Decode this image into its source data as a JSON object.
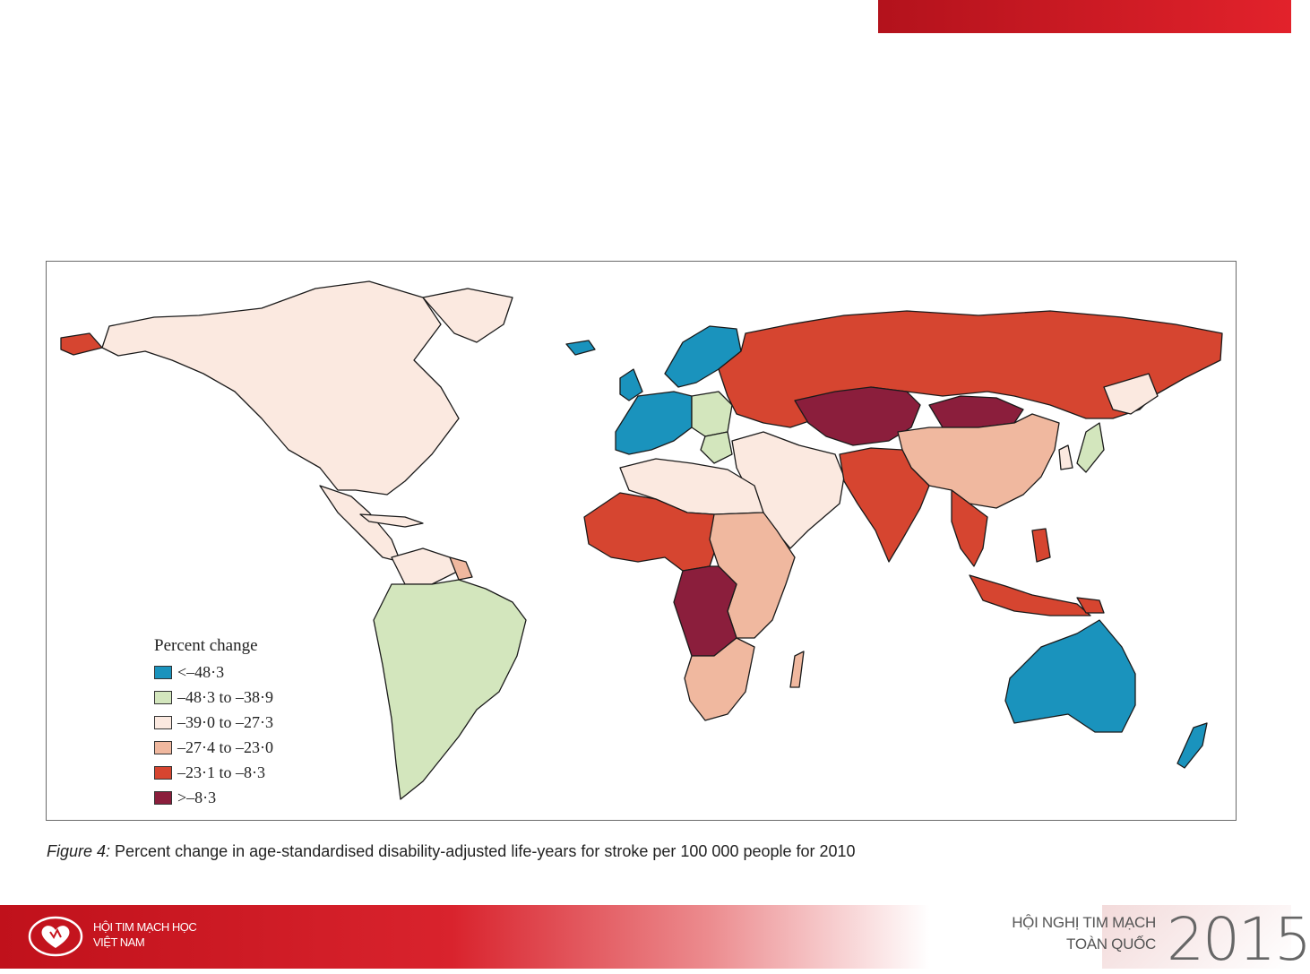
{
  "legend": {
    "title": "Percent change",
    "items": [
      {
        "label": "<–48·3",
        "color": "#1a93bd"
      },
      {
        "label": "–48·3 to –38·9",
        "color": "#d3e6bd"
      },
      {
        "label": "–39·0 to –27·3",
        "color": "#fbe9e0"
      },
      {
        "label": "–27·4 to –23·0",
        "color": "#f0b89f"
      },
      {
        "label": "–23·1 to –8·3",
        "color": "#d64530"
      },
      {
        "label": ">–8·3",
        "color": "#8b1e3c"
      }
    ]
  },
  "caption": {
    "label": "Figure 4:",
    "text": " Percent change in age-standardised disability-adjusted life-years for stroke per 100 000 people for 2010"
  },
  "footer": {
    "org_line1": "HỘI TIM MẠCH HỌC",
    "org_line2": "VIỆT NAM",
    "conf_line1": "HỘI NGHỊ TIM MẠCH",
    "conf_line2": "TOÀN QUỐC",
    "year": "2015",
    "accent": "#c8161f"
  }
}
